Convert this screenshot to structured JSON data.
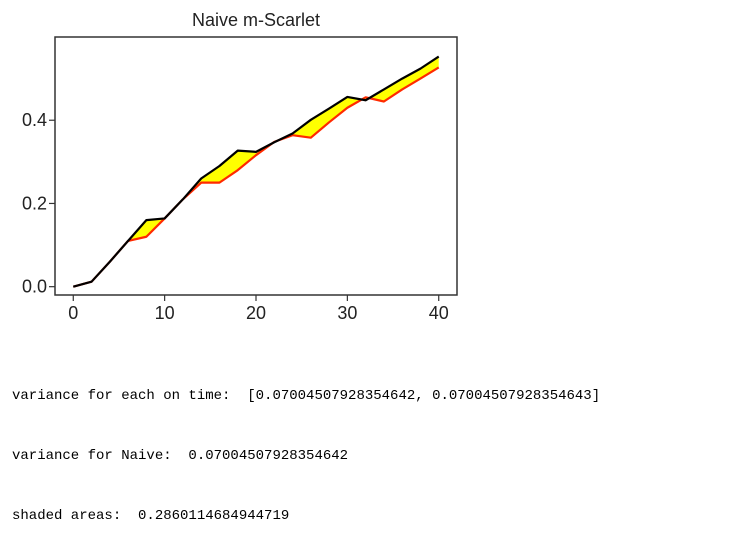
{
  "chart_data": {
    "type": "line",
    "title": "Naive m-Scarlet",
    "xlabel": "",
    "ylabel": "",
    "xlim": [
      -2,
      42
    ],
    "ylim": [
      -0.02,
      0.6
    ],
    "xticks": [
      0,
      10,
      20,
      30,
      40
    ],
    "xtick_labels": [
      "0",
      "10",
      "20",
      "30",
      "40"
    ],
    "yticks": [
      0.0,
      0.2,
      0.4
    ],
    "ytick_labels": [
      "0.0",
      "0.2",
      "0.4"
    ],
    "grid": false,
    "legend": "none",
    "series": [
      {
        "color": "#000000",
        "x": [
          0,
          2,
          4,
          6,
          8,
          10,
          12,
          14,
          16,
          18,
          20,
          22,
          24,
          26,
          28,
          30,
          32,
          34,
          36,
          38,
          40
        ],
        "y": [
          0.0,
          0.012,
          0.06,
          0.11,
          0.16,
          0.164,
          0.21,
          0.26,
          0.29,
          0.327,
          0.324,
          0.347,
          0.368,
          0.401,
          0.428,
          0.456,
          0.448,
          0.474,
          0.5,
          0.524,
          0.553
        ]
      },
      {
        "color": "#ff2a00",
        "x": [
          0,
          2,
          4,
          6,
          8,
          10,
          12,
          14,
          16,
          18,
          20,
          22,
          24,
          26,
          28,
          30,
          32,
          34,
          36,
          38,
          40
        ],
        "y": [
          0.0,
          0.012,
          0.06,
          0.11,
          0.12,
          0.164,
          0.21,
          0.25,
          0.25,
          0.28,
          0.316,
          0.348,
          0.364,
          0.358,
          0.395,
          0.43,
          0.455,
          0.445,
          0.474,
          0.5,
          0.527
        ]
      }
    ],
    "fill_between": {
      "color": "#ffff00"
    }
  },
  "output": {
    "lines": [
      "variance for each on time:  [0.07004507928354642, 0.07004507928354643]",
      "variance for Naive:  0.07004507928354642",
      "shaded areas:  0.2860114684944719"
    ]
  }
}
